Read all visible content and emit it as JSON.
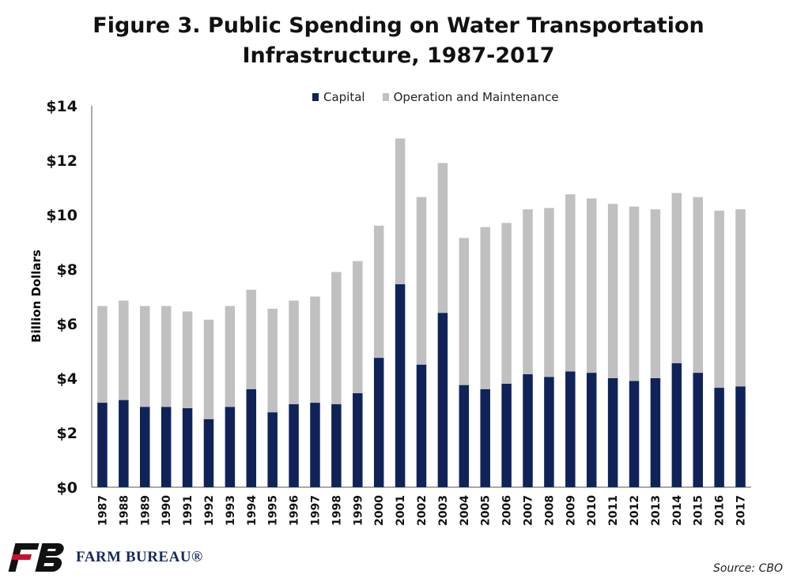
{
  "title_line1": "Figure 3. Public Spending on Water Transportation",
  "title_line2": "Infrastructure, 1987-2017",
  "legend": {
    "capital": "Capital",
    "om": "Operation and Maintenance"
  },
  "colors": {
    "capital": "#0f2358",
    "om": "#c0c0c0"
  },
  "logo_text": "FARM BUREAU®",
  "source": "Source: CBO",
  "chart_data": {
    "type": "bar",
    "stacked": true,
    "title": "Figure 3. Public Spending on Water Transportation Infrastructure, 1987-2017",
    "xlabel": "",
    "ylabel": "Billion Dollars",
    "ylim": [
      0,
      14
    ],
    "yticks": [
      0,
      2,
      4,
      6,
      8,
      10,
      12,
      14
    ],
    "ytick_labels": [
      "$0",
      "$2",
      "$4",
      "$6",
      "$8",
      "$10",
      "$12",
      "$14"
    ],
    "grid": false,
    "legend_position": "top",
    "categories": [
      "1987",
      "1988",
      "1989",
      "1990",
      "1991",
      "1992",
      "1993",
      "1994",
      "1995",
      "1996",
      "1997",
      "1998",
      "1999",
      "2000",
      "2001",
      "2002",
      "2003",
      "2004",
      "2005",
      "2006",
      "2007",
      "2008",
      "2009",
      "2010",
      "2011",
      "2012",
      "2013",
      "2014",
      "2015",
      "2016",
      "2017"
    ],
    "series": [
      {
        "name": "Capital",
        "values": [
          3.1,
          3.2,
          2.95,
          2.95,
          2.9,
          2.5,
          2.95,
          3.6,
          2.75,
          3.05,
          3.1,
          3.05,
          3.45,
          4.75,
          7.45,
          4.5,
          6.4,
          3.75,
          3.6,
          3.8,
          4.15,
          4.05,
          4.25,
          4.2,
          4.0,
          3.9,
          4.0,
          4.55,
          4.2,
          3.65,
          3.7
        ]
      },
      {
        "name": "Operation and Maintenance",
        "values": [
          3.55,
          3.65,
          3.7,
          3.7,
          3.55,
          3.65,
          3.7,
          3.65,
          3.8,
          3.8,
          3.9,
          4.85,
          4.85,
          4.85,
          5.35,
          6.15,
          5.5,
          5.4,
          5.95,
          5.9,
          6.05,
          6.2,
          6.5,
          6.4,
          6.4,
          6.4,
          6.2,
          6.25,
          6.45,
          6.5,
          6.5
        ]
      }
    ]
  }
}
